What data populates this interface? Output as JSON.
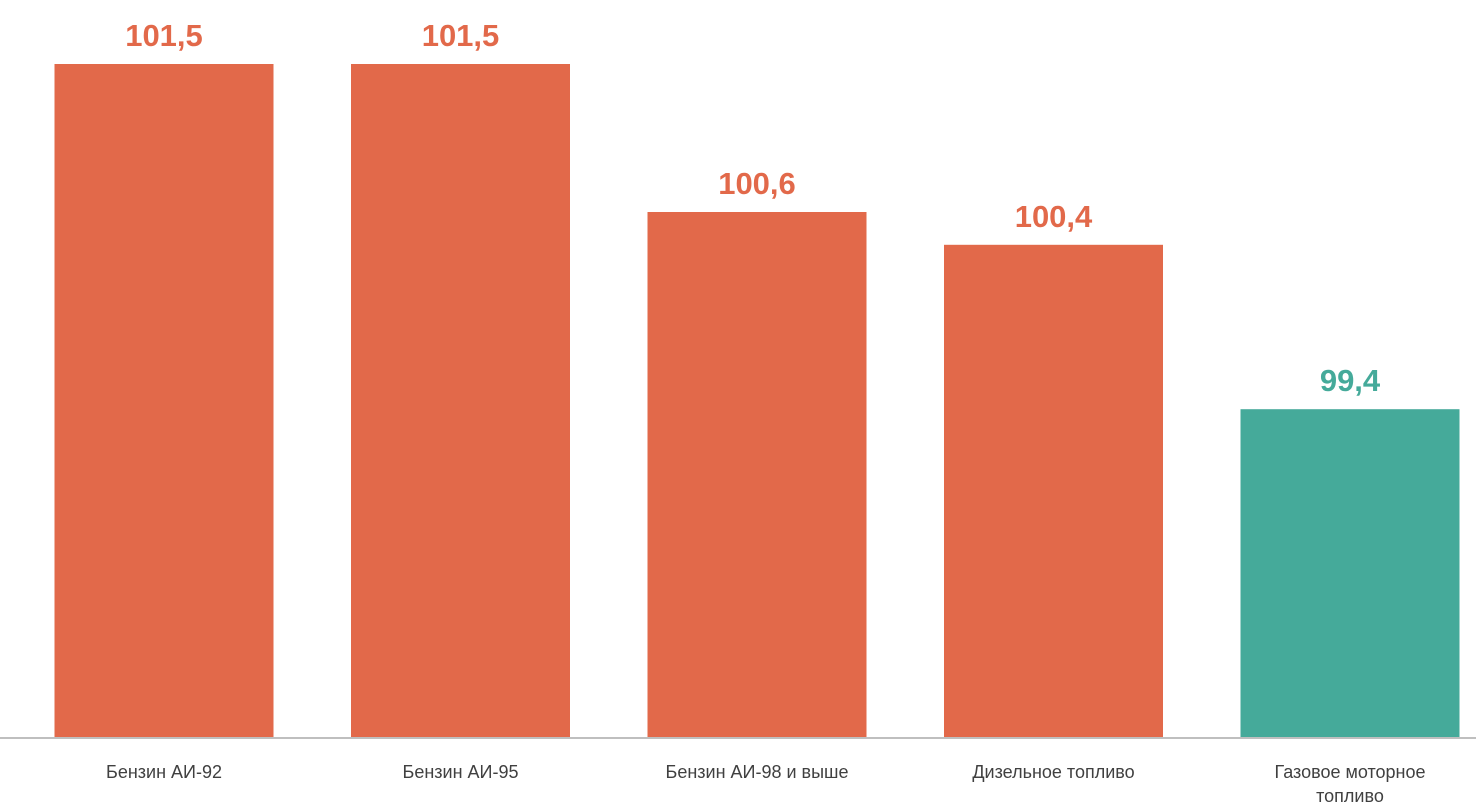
{
  "chart_data": {
    "type": "bar",
    "title": "",
    "xlabel": "",
    "ylabel": "",
    "categories": [
      [
        "Бензин АИ-92"
      ],
      [
        "Бензин АИ-95"
      ],
      [
        "Бензин АИ-98 и выше"
      ],
      [
        "Дизельное топливо"
      ],
      [
        "Газовое моторное",
        "топливо"
      ]
    ],
    "values": [
      101.5,
      101.5,
      100.6,
      100.4,
      99.4
    ],
    "value_labels": [
      "101,5",
      "101,5",
      "100,6",
      "100,4",
      "99,4"
    ],
    "bar_colors": [
      "#E2694A",
      "#E2694A",
      "#E2694A",
      "#E2694A",
      "#45AA9A"
    ],
    "ylim": [
      97.4,
      101.5
    ],
    "grid": false,
    "legend": "none",
    "axis_color": "#BFBFBF"
  }
}
